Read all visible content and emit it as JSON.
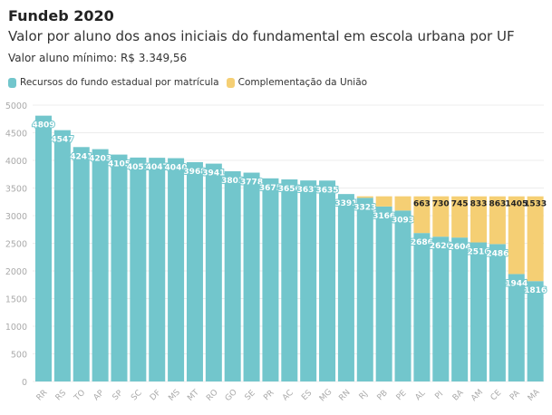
{
  "header": {
    "title": "Fundeb 2020",
    "subtitle": "Valor por aluno dos anos iniciais do fundamental em escola urbana por UF",
    "note": "Valor aluno mínimo: R$ 3.349,56"
  },
  "chart_data": {
    "type": "bar",
    "stacked": true,
    "title": "Fundeb 2020",
    "subtitle": "Valor por aluno dos anos iniciais do fundamental em escola urbana por UF",
    "ylim": [
      0,
      5000
    ],
    "yticks": [
      0,
      500,
      1000,
      1500,
      2000,
      2500,
      3000,
      3500,
      4000,
      4500,
      5000
    ],
    "grid": true,
    "legend_position": "top-left",
    "categories": [
      "RR",
      "RS",
      "TO",
      "AP",
      "SP",
      "SC",
      "DF",
      "MS",
      "MT",
      "RO",
      "GO",
      "SE",
      "PR",
      "AC",
      "ES",
      "MG",
      "RN",
      "RJ",
      "PB",
      "PE",
      "AL",
      "PI",
      "BA",
      "AM",
      "CE",
      "PA",
      "MA"
    ],
    "series": [
      {
        "name": "Recursos do fundo estadual por matrícula",
        "color": "#72c6cc",
        "values": [
          4809,
          4547,
          4241,
          4203,
          4105,
          4051,
          4047,
          4040,
          3968,
          3941,
          3803,
          3778,
          3675,
          3656,
          3637,
          3635,
          3391,
          3323,
          3166,
          3093,
          2686,
          2620,
          2604,
          2516,
          2486,
          1944,
          1816
        ]
      },
      {
        "name": "Complementação da União",
        "color": "#f5cf74",
        "values": [
          0,
          0,
          0,
          0,
          0,
          0,
          0,
          0,
          0,
          0,
          0,
          0,
          0,
          0,
          0,
          0,
          0,
          27,
          184,
          257,
          663,
          730,
          745,
          833,
          863,
          1405,
          1533
        ],
        "labeled": [
          false,
          false,
          false,
          false,
          false,
          false,
          false,
          false,
          false,
          false,
          false,
          false,
          false,
          false,
          false,
          false,
          false,
          false,
          false,
          false,
          true,
          true,
          true,
          true,
          true,
          true,
          true
        ]
      }
    ]
  }
}
